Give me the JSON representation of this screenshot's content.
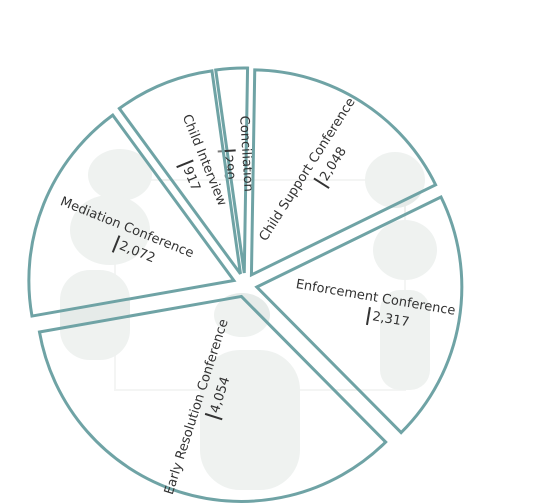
{
  "chart_data": {
    "type": "pie",
    "categories": [
      "Conciliation",
      "Child Support Conference",
      "Enforcement Conference",
      "Early Resolution Conference",
      "Mediation Conference",
      "Child Interview"
    ],
    "values": [
      290,
      2048,
      2317,
      4054,
      2072,
      917
    ],
    "value_labels": [
      "290",
      "2,048",
      "2,317",
      "4,054",
      "2,072",
      "917"
    ],
    "color": "#6fa3a5"
  }
}
